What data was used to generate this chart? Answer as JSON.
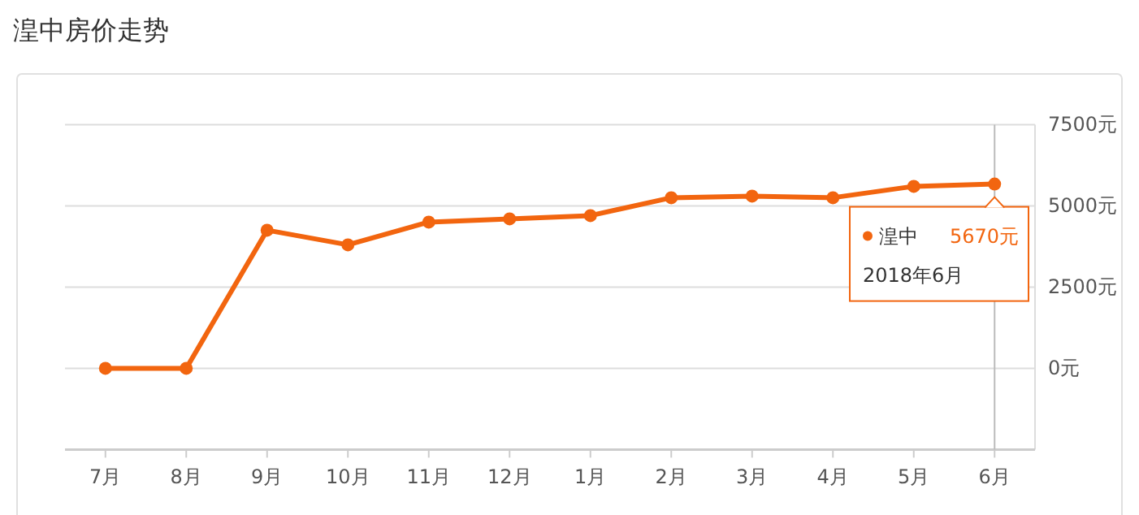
{
  "chart_data": {
    "type": "line",
    "title": "湟中房价走势",
    "categories": [
      "7月",
      "8月",
      "9月",
      "10月",
      "11月",
      "12月",
      "1月",
      "2月",
      "3月",
      "4月",
      "5月",
      "6月"
    ],
    "series": [
      {
        "name": "湟中",
        "color": "#f2650f",
        "values": [
          0,
          0,
          4250,
          3800,
          4500,
          4600,
          4700,
          5250,
          5300,
          5250,
          5600,
          5670
        ],
        "value_labels": [
          null,
          null,
          null,
          null,
          null,
          null,
          null,
          null,
          null,
          null,
          null,
          "5670元"
        ]
      }
    ],
    "ylim": [
      -2500,
      7500
    ],
    "yticks": [
      {
        "value": -2500,
        "label": null
      },
      {
        "value": 0,
        "label": "0元"
      },
      {
        "value": 2500,
        "label": "2500元"
      },
      {
        "value": 5000,
        "label": "5000元"
      },
      {
        "value": 7500,
        "label": "7500元"
      }
    ],
    "grid": "y",
    "marker": "circle",
    "line_style": "solid",
    "legend": "right",
    "ref_lines": [
      {
        "axis": "x",
        "value": "6月",
        "color": "#bbbbbb"
      }
    ],
    "annotations": [
      "2018年6月"
    ]
  }
}
